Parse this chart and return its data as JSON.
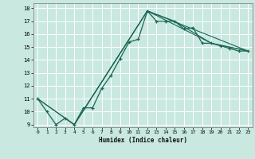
{
  "xlabel": "Humidex (Indice chaleur)",
  "ylabel": "",
  "xlim": [
    -0.5,
    23.5
  ],
  "ylim": [
    8.8,
    18.4
  ],
  "xticks": [
    0,
    1,
    2,
    3,
    4,
    5,
    6,
    7,
    8,
    9,
    10,
    11,
    12,
    13,
    14,
    15,
    16,
    17,
    18,
    19,
    20,
    21,
    22,
    23
  ],
  "yticks": [
    9,
    10,
    11,
    12,
    13,
    14,
    15,
    16,
    17,
    18
  ],
  "bg_color": "#c8e8e0",
  "line_color": "#1a6655",
  "grid_color": "#ffffff",
  "line1_x": [
    0,
    1,
    2,
    3,
    4,
    5,
    6,
    7,
    8,
    9,
    10,
    11,
    12,
    13,
    14,
    15,
    16,
    17,
    18,
    19,
    20,
    21,
    22,
    23
  ],
  "line1_y": [
    11.0,
    10.0,
    9.0,
    9.5,
    9.0,
    10.3,
    10.3,
    11.8,
    12.8,
    14.1,
    15.4,
    15.6,
    17.8,
    17.0,
    17.0,
    17.0,
    16.4,
    16.5,
    15.3,
    15.3,
    15.1,
    14.9,
    14.7,
    14.7
  ],
  "line2_x": [
    0,
    4,
    12,
    15,
    19,
    23
  ],
  "line2_y": [
    11.0,
    9.0,
    17.8,
    17.0,
    15.3,
    14.7
  ],
  "line3_x": [
    0,
    4,
    12,
    19,
    23
  ],
  "line3_y": [
    11.0,
    9.0,
    17.8,
    15.3,
    14.7
  ],
  "line4_x": [
    4,
    12,
    23
  ],
  "line4_y": [
    9.0,
    17.8,
    14.7
  ]
}
